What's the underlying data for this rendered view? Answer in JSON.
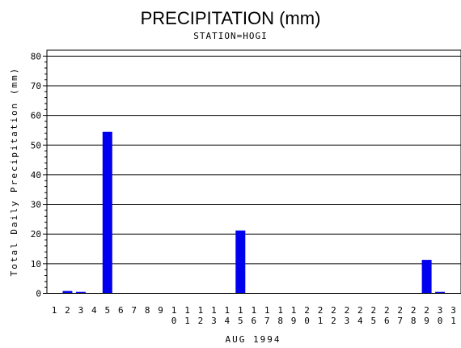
{
  "chart_data": {
    "type": "bar",
    "title": "PRECIPITATION (mm)",
    "subtitle": "STATION=HOGI",
    "xlabel": "AUG 1994",
    "ylabel": "Total Daily Precipitation (mm)",
    "ylim": [
      0,
      82
    ],
    "yticks": [
      0,
      10,
      20,
      30,
      40,
      50,
      60,
      70,
      80
    ],
    "grid": true,
    "categories": [
      "1",
      "2",
      "3",
      "4",
      "5",
      "6",
      "7",
      "8",
      "9",
      "10",
      "11",
      "12",
      "13",
      "14",
      "15",
      "16",
      "17",
      "18",
      "19",
      "20",
      "21",
      "22",
      "23",
      "24",
      "25",
      "26",
      "27",
      "28",
      "29",
      "30",
      "31"
    ],
    "values": [
      0,
      0.8,
      0.5,
      0,
      54.5,
      0,
      0,
      0,
      0,
      0,
      0,
      0,
      0,
      0,
      21.2,
      0,
      0,
      0,
      0,
      0,
      0,
      0,
      0,
      0,
      0,
      0,
      0,
      0,
      11.3,
      0.5,
      0
    ],
    "bar_color": "#0000ee"
  }
}
